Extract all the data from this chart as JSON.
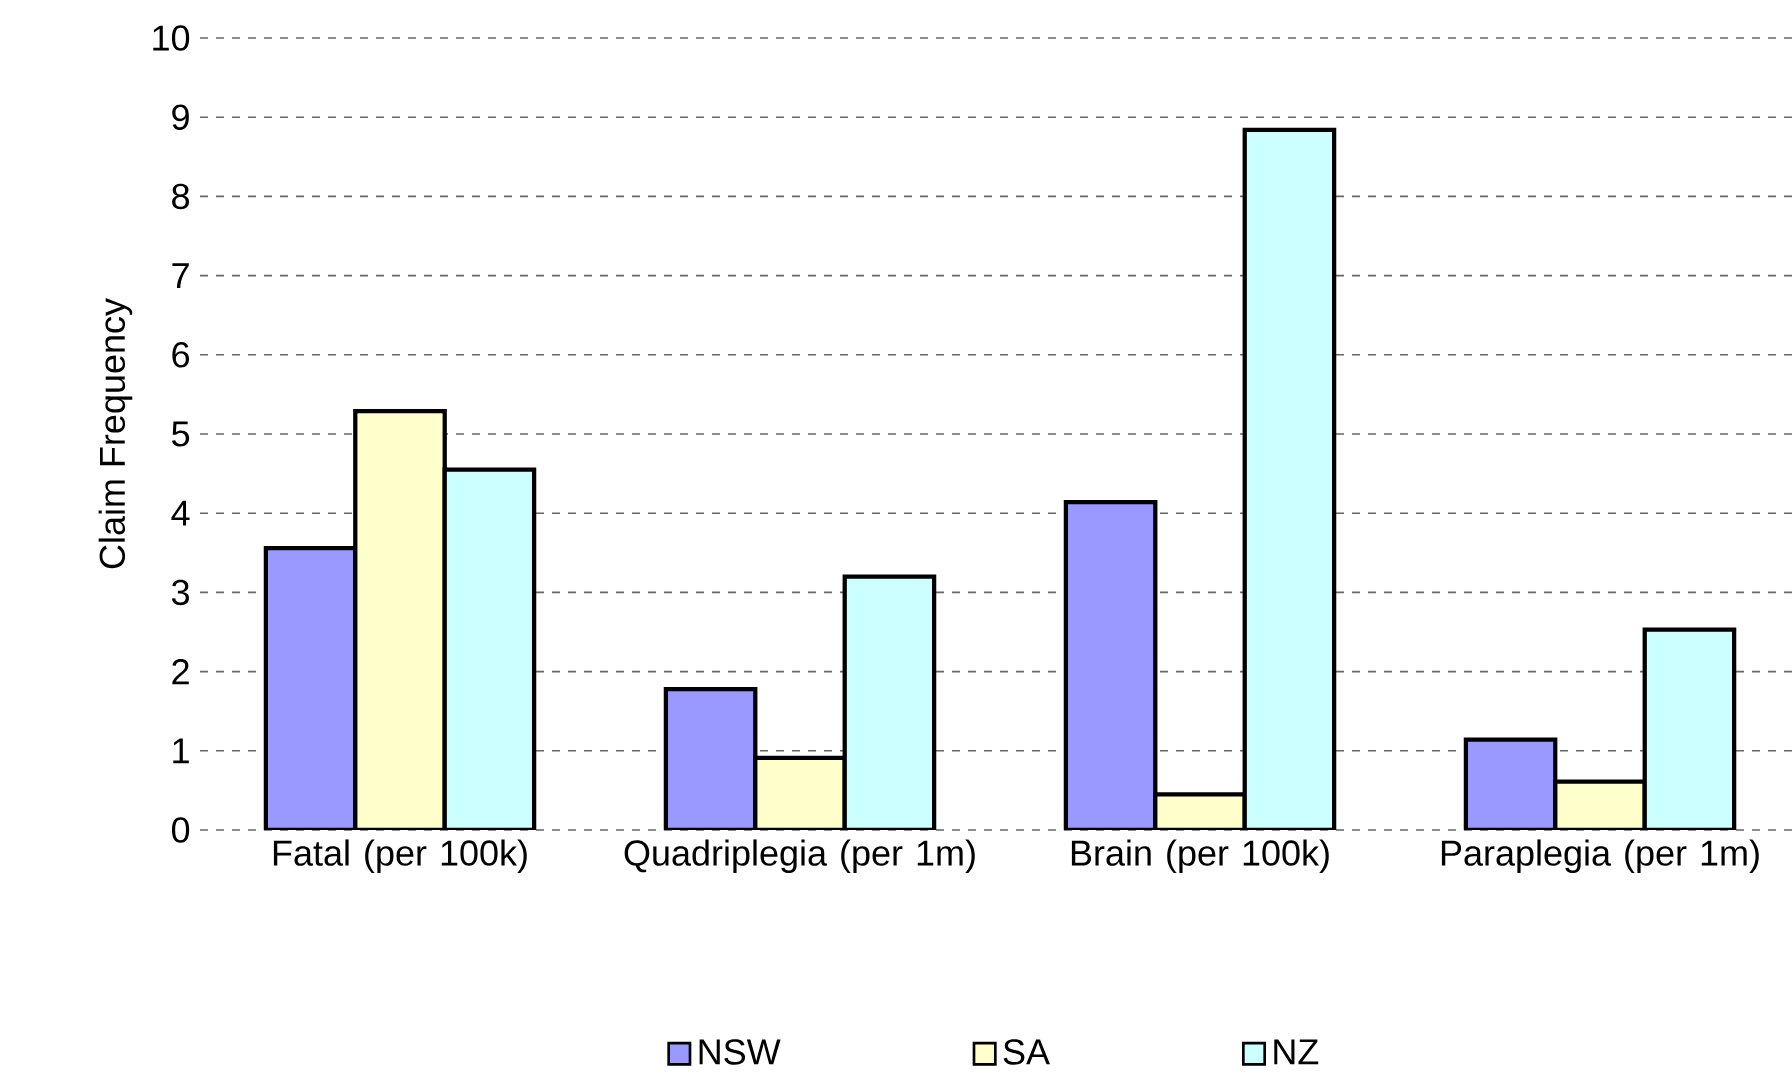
{
  "chart_data": {
    "type": "bar",
    "ylabel": "Claim Frequency",
    "categories": [
      "Fatal (per 100k)",
      "Quadriplegia (per 1m)",
      "Brain (per 100k)",
      "Paraplegia (per 1m)"
    ],
    "series": [
      {
        "name": "NSW",
        "color": "#9999ff",
        "values": [
          3.56,
          1.78,
          4.14,
          1.14
        ]
      },
      {
        "name": "SA",
        "color": "#ffffcc",
        "values": [
          5.29,
          0.91,
          0.45,
          0.61
        ]
      },
      {
        "name": "NZ",
        "color": "#ccffff",
        "values": [
          4.55,
          3.2,
          8.84,
          2.53
        ]
      }
    ],
    "ylim": [
      0,
      10
    ],
    "yticks": [
      0,
      1,
      2,
      3,
      4,
      5,
      6,
      7,
      8,
      9,
      10
    ],
    "grid": "y",
    "legend": "bottom"
  }
}
